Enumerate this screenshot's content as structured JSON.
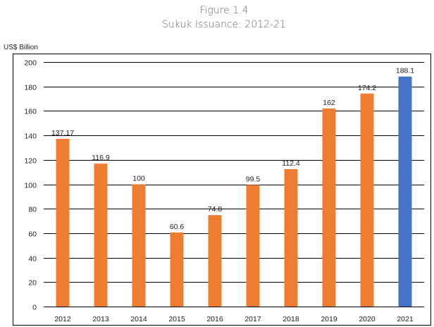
{
  "chart_data": {
    "type": "bar",
    "title": "Figure 1.4",
    "subtitle": "Sukuk Issuance: 2012-21",
    "ylabel": "US$ Billion",
    "xlabel": "",
    "categories": [
      "2012",
      "2013",
      "2014",
      "2015",
      "2016",
      "2017",
      "2018",
      "2019",
      "2020",
      "2021"
    ],
    "values": [
      137.17,
      116.9,
      100,
      60.6,
      74.8,
      99.5,
      112.4,
      162,
      174.2,
      188.1
    ],
    "value_labels": [
      "137.17",
      "116.9",
      "100",
      "60.6",
      "74.8",
      "99.5",
      "112.4",
      "162",
      "174.2",
      "188.1"
    ],
    "ylim": [
      0,
      200
    ],
    "yticks": [
      0,
      20,
      40,
      60,
      80,
      100,
      120,
      140,
      160,
      180,
      200
    ],
    "grid": true,
    "colors": {
      "default_bar": "#ED7D31",
      "highlight_bar": "#4472C4",
      "highlight_index": 9,
      "gridline": "#000000"
    }
  }
}
